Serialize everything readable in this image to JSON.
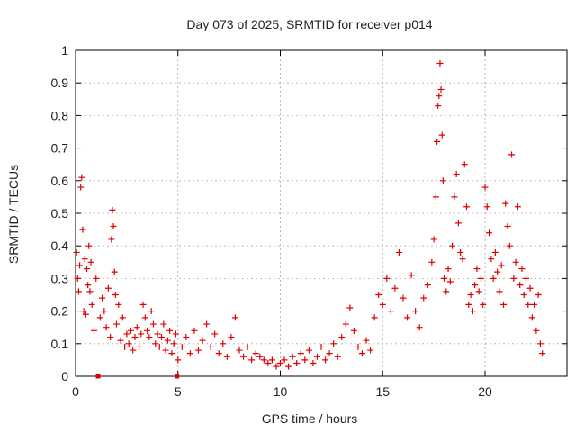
{
  "chart_data": {
    "type": "scatter",
    "title": "Day 073 of 2025, SRMTID for receiver p014",
    "xlabel": "GPS time / hours",
    "ylabel": "SRMTID / TECUs",
    "xlim": [
      0,
      24
    ],
    "ylim": [
      0,
      1
    ],
    "grid": true,
    "x_ticks": [
      0,
      5,
      10,
      15,
      20
    ],
    "x_tick_labels": [
      "0",
      "5",
      "10",
      "15",
      "20"
    ],
    "y_ticks": [
      0,
      0.1,
      0.2,
      0.3,
      0.4,
      0.5,
      0.6,
      0.7,
      0.8,
      0.9,
      1
    ],
    "y_tick_labels": [
      "0",
      "0.1",
      "0.2",
      "0.3",
      "0.4",
      "0.5",
      "0.6",
      "0.7",
      "0.8",
      "0.9",
      "1"
    ],
    "marker": "+",
    "marker_color": "#e00000",
    "series": [
      {
        "name": "SRMTID",
        "points": [
          [
            0.05,
            0.38
          ],
          [
            0.1,
            0.3
          ],
          [
            0.15,
            0.26
          ],
          [
            0.2,
            0.34
          ],
          [
            0.25,
            0.58
          ],
          [
            0.3,
            0.61
          ],
          [
            0.35,
            0.45
          ],
          [
            0.4,
            0.2
          ],
          [
            0.45,
            0.36
          ],
          [
            0.5,
            0.19
          ],
          [
            0.55,
            0.33
          ],
          [
            0.6,
            0.28
          ],
          [
            0.65,
            0.4
          ],
          [
            0.7,
            0.26
          ],
          [
            0.75,
            0.35
          ],
          [
            0.8,
            0.22
          ],
          [
            0.9,
            0.14
          ],
          [
            1.0,
            0.3
          ],
          [
            1.2,
            0.18
          ],
          [
            1.3,
            0.24
          ],
          [
            1.4,
            0.2
          ],
          [
            1.5,
            0.15
          ],
          [
            1.6,
            0.27
          ],
          [
            1.7,
            0.12
          ],
          [
            1.75,
            0.42
          ],
          [
            1.8,
            0.51
          ],
          [
            1.85,
            0.46
          ],
          [
            1.9,
            0.32
          ],
          [
            1.95,
            0.25
          ],
          [
            2.0,
            0.16
          ],
          [
            2.1,
            0.22
          ],
          [
            2.2,
            0.11
          ],
          [
            2.3,
            0.18
          ],
          [
            2.4,
            0.09
          ],
          [
            2.5,
            0.13
          ],
          [
            2.6,
            0.1
          ],
          [
            2.7,
            0.14
          ],
          [
            2.8,
            0.08
          ],
          [
            2.9,
            0.12
          ],
          [
            3.0,
            0.15
          ],
          [
            3.1,
            0.09
          ],
          [
            3.2,
            0.13
          ],
          [
            3.3,
            0.22
          ],
          [
            3.4,
            0.18
          ],
          [
            3.5,
            0.14
          ],
          [
            3.6,
            0.12
          ],
          [
            3.7,
            0.2
          ],
          [
            3.8,
            0.16
          ],
          [
            3.9,
            0.1
          ],
          [
            4.0,
            0.13
          ],
          [
            4.1,
            0.09
          ],
          [
            4.2,
            0.12
          ],
          [
            4.3,
            0.16
          ],
          [
            4.4,
            0.08
          ],
          [
            4.5,
            0.11
          ],
          [
            4.6,
            0.14
          ],
          [
            4.7,
            0.07
          ],
          [
            4.8,
            0.1
          ],
          [
            4.9,
            0.13
          ],
          [
            5.0,
            0.05
          ],
          [
            5.2,
            0.09
          ],
          [
            5.4,
            0.12
          ],
          [
            5.6,
            0.07
          ],
          [
            5.8,
            0.14
          ],
          [
            6.0,
            0.08
          ],
          [
            6.2,
            0.11
          ],
          [
            6.4,
            0.16
          ],
          [
            6.6,
            0.09
          ],
          [
            6.8,
            0.13
          ],
          [
            7.0,
            0.07
          ],
          [
            7.2,
            0.1
          ],
          [
            7.4,
            0.06
          ],
          [
            7.6,
            0.12
          ],
          [
            7.8,
            0.18
          ],
          [
            8.0,
            0.08
          ],
          [
            8.2,
            0.06
          ],
          [
            8.4,
            0.09
          ],
          [
            8.6,
            0.05
          ],
          [
            8.8,
            0.07
          ],
          [
            9.0,
            0.06
          ],
          [
            9.2,
            0.05
          ],
          [
            9.4,
            0.04
          ],
          [
            9.6,
            0.05
          ],
          [
            9.8,
            0.03
          ],
          [
            10.0,
            0.04
          ],
          [
            10.2,
            0.05
          ],
          [
            10.4,
            0.03
          ],
          [
            10.6,
            0.06
          ],
          [
            10.8,
            0.04
          ],
          [
            11.0,
            0.07
          ],
          [
            11.2,
            0.05
          ],
          [
            11.4,
            0.08
          ],
          [
            11.6,
            0.04
          ],
          [
            11.8,
            0.06
          ],
          [
            12.0,
            0.09
          ],
          [
            12.2,
            0.05
          ],
          [
            12.4,
            0.07
          ],
          [
            12.6,
            0.1
          ],
          [
            12.8,
            0.06
          ],
          [
            13.0,
            0.12
          ],
          [
            13.2,
            0.16
          ],
          [
            13.4,
            0.21
          ],
          [
            13.6,
            0.14
          ],
          [
            13.8,
            0.09
          ],
          [
            14.0,
            0.07
          ],
          [
            14.2,
            0.11
          ],
          [
            14.4,
            0.08
          ],
          [
            14.6,
            0.18
          ],
          [
            14.8,
            0.25
          ],
          [
            15.0,
            0.22
          ],
          [
            15.2,
            0.3
          ],
          [
            15.4,
            0.2
          ],
          [
            15.6,
            0.27
          ],
          [
            15.8,
            0.38
          ],
          [
            16.0,
            0.24
          ],
          [
            16.2,
            0.18
          ],
          [
            16.4,
            0.31
          ],
          [
            16.6,
            0.2
          ],
          [
            16.8,
            0.15
          ],
          [
            17.0,
            0.24
          ],
          [
            17.2,
            0.28
          ],
          [
            17.4,
            0.35
          ],
          [
            17.5,
            0.42
          ],
          [
            17.6,
            0.55
          ],
          [
            17.65,
            0.72
          ],
          [
            17.7,
            0.83
          ],
          [
            17.75,
            0.86
          ],
          [
            17.8,
            0.96
          ],
          [
            17.85,
            0.88
          ],
          [
            17.9,
            0.74
          ],
          [
            17.95,
            0.6
          ],
          [
            18.0,
            0.3
          ],
          [
            18.1,
            0.26
          ],
          [
            18.2,
            0.33
          ],
          [
            18.3,
            0.29
          ],
          [
            18.4,
            0.4
          ],
          [
            18.5,
            0.55
          ],
          [
            18.6,
            0.62
          ],
          [
            18.7,
            0.47
          ],
          [
            18.8,
            0.38
          ],
          [
            18.9,
            0.36
          ],
          [
            19.0,
            0.65
          ],
          [
            19.1,
            0.52
          ],
          [
            19.2,
            0.22
          ],
          [
            19.3,
            0.25
          ],
          [
            19.4,
            0.2
          ],
          [
            19.5,
            0.28
          ],
          [
            19.6,
            0.33
          ],
          [
            19.7,
            0.26
          ],
          [
            19.8,
            0.3
          ],
          [
            19.9,
            0.22
          ],
          [
            20.0,
            0.58
          ],
          [
            20.1,
            0.52
          ],
          [
            20.2,
            0.44
          ],
          [
            20.3,
            0.36
          ],
          [
            20.4,
            0.3
          ],
          [
            20.5,
            0.38
          ],
          [
            20.6,
            0.32
          ],
          [
            20.7,
            0.26
          ],
          [
            20.8,
            0.34
          ],
          [
            20.9,
            0.22
          ],
          [
            21.0,
            0.53
          ],
          [
            21.1,
            0.46
          ],
          [
            21.2,
            0.4
          ],
          [
            21.3,
            0.68
          ],
          [
            21.4,
            0.3
          ],
          [
            21.5,
            0.35
          ],
          [
            21.6,
            0.52
          ],
          [
            21.7,
            0.28
          ],
          [
            21.8,
            0.33
          ],
          [
            21.9,
            0.25
          ],
          [
            22.0,
            0.3
          ],
          [
            22.1,
            0.22
          ],
          [
            22.2,
            0.27
          ],
          [
            22.3,
            0.18
          ],
          [
            22.4,
            0.22
          ],
          [
            22.5,
            0.14
          ],
          [
            22.6,
            0.25
          ],
          [
            22.7,
            0.1
          ],
          [
            22.8,
            0.07
          ]
        ]
      }
    ],
    "gap_markers": [
      [
        1.1,
        0
      ],
      [
        4.95,
        0
      ]
    ]
  }
}
